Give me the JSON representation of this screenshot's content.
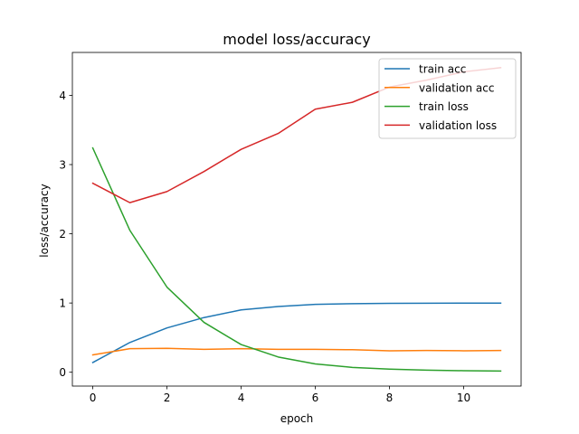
{
  "chart_data": {
    "type": "line",
    "title": "model loss/accuracy",
    "xlabel": "epoch",
    "ylabel": "loss/accuracy",
    "xlim": [
      -0.55,
      11.55
    ],
    "ylim": [
      -0.2,
      4.62
    ],
    "xticks": [
      0,
      2,
      4,
      6,
      8,
      10
    ],
    "yticks": [
      0,
      1,
      2,
      3,
      4
    ],
    "grid": false,
    "legend_position": "top-right",
    "x": [
      0,
      1,
      2,
      3,
      4,
      5,
      6,
      7,
      8,
      9,
      10,
      11
    ],
    "series": [
      {
        "name": "train acc",
        "color": "#1f77b4",
        "values": [
          0.14,
          0.43,
          0.64,
          0.79,
          0.9,
          0.95,
          0.98,
          0.99,
          0.995,
          0.997,
          0.998,
          0.999
        ]
      },
      {
        "name": "validation acc",
        "color": "#ff7f0e",
        "values": [
          0.25,
          0.34,
          0.345,
          0.33,
          0.34,
          0.33,
          0.33,
          0.325,
          0.31,
          0.315,
          0.31,
          0.315
        ]
      },
      {
        "name": "train loss",
        "color": "#2ca02c",
        "values": [
          3.24,
          2.05,
          1.23,
          0.72,
          0.4,
          0.22,
          0.12,
          0.07,
          0.045,
          0.03,
          0.022,
          0.018
        ]
      },
      {
        "name": "validation loss",
        "color": "#d62728",
        "values": [
          2.73,
          2.45,
          2.61,
          2.9,
          3.22,
          3.45,
          3.8,
          3.9,
          4.12,
          4.22,
          4.34,
          4.4
        ]
      }
    ]
  }
}
